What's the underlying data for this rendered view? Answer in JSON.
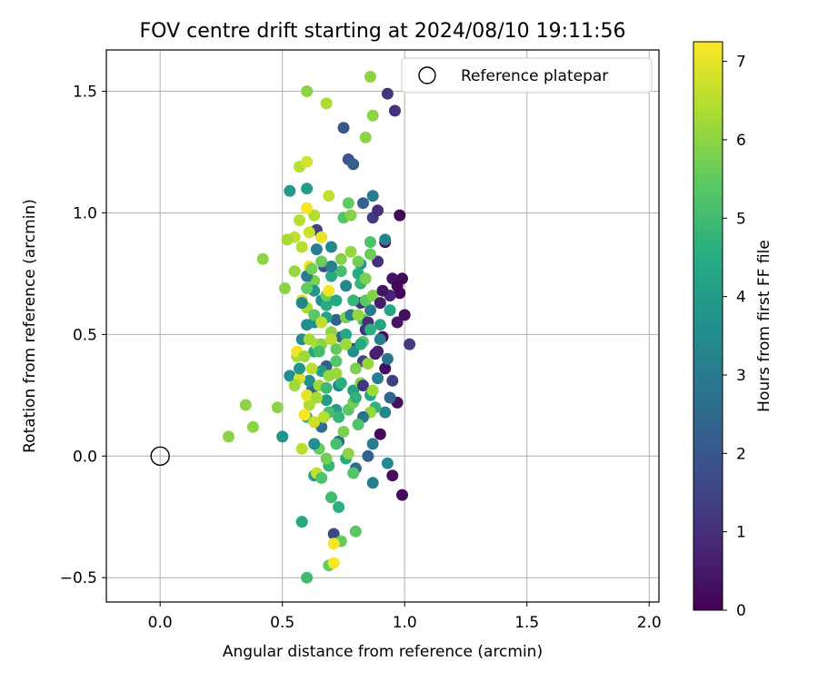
{
  "chart_data": {
    "type": "scatter",
    "title": "FOV centre drift starting at 2024/08/10 19:11:56",
    "xlabel": "Angular distance from reference (arcmin)",
    "ylabel": "Rotation from reference (arcmin)",
    "xlim": [
      -0.22,
      2.04
    ],
    "ylim": [
      -0.6,
      1.67
    ],
    "x_ticks": [
      0.0,
      0.5,
      1.0,
      1.5,
      2.0
    ],
    "x_tick_labels": [
      "0.0",
      "0.5",
      "1.0",
      "1.5",
      "2.0"
    ],
    "y_ticks": [
      -0.5,
      0.0,
      0.5,
      1.0,
      1.5
    ],
    "y_tick_labels": [
      "−0.5",
      "0.0",
      "0.5",
      "1.0",
      "1.5"
    ],
    "grid": true,
    "legend": {
      "placement": "top-right",
      "entries": [
        "Reference platepar"
      ]
    },
    "reference_point": {
      "x": 0.0,
      "y": 0.0,
      "marker": "open-circle",
      "name": "Reference platepar"
    },
    "colorbar": {
      "label": "Hours from first FF file",
      "colormap": "viridis",
      "min": 0,
      "max": 7.25,
      "ticks": [
        0,
        1,
        2,
        3,
        4,
        5,
        6,
        7
      ],
      "tick_labels": [
        "0",
        "1",
        "2",
        "3",
        "4",
        "5",
        "6",
        "7"
      ]
    },
    "points": [
      [
        0.98,
        0.99,
        0.1
      ],
      [
        0.92,
        0.88,
        0.3
      ],
      [
        0.99,
        0.73,
        0.2
      ],
      [
        0.98,
        0.67,
        0.1
      ],
      [
        1.0,
        0.58,
        0.3
      ],
      [
        0.95,
        0.73,
        0.4
      ],
      [
        0.97,
        0.55,
        0.4
      ],
      [
        0.91,
        0.49,
        0.2
      ],
      [
        0.88,
        0.42,
        0.5
      ],
      [
        0.92,
        0.36,
        0.3
      ],
      [
        0.97,
        0.22,
        0.3
      ],
      [
        0.9,
        0.09,
        0.2
      ],
      [
        0.95,
        -0.08,
        0.3
      ],
      [
        0.99,
        -0.16,
        0.2
      ],
      [
        0.97,
        0.7,
        0.1
      ],
      [
        0.96,
        1.42,
        1.0
      ],
      [
        0.93,
        1.49,
        1.2
      ],
      [
        0.87,
        0.98,
        1.3
      ],
      [
        0.89,
        1.01,
        1.0
      ],
      [
        0.94,
        0.66,
        0.8
      ],
      [
        1.02,
        0.46,
        1.3
      ],
      [
        0.89,
        0.8,
        1.0
      ],
      [
        0.82,
        0.63,
        1.2
      ],
      [
        0.84,
        0.52,
        1.1
      ],
      [
        0.79,
        0.44,
        1.4
      ],
      [
        0.83,
        0.39,
        1.5
      ],
      [
        0.71,
        -0.32,
        1.6
      ],
      [
        0.75,
        1.35,
        2.0
      ],
      [
        0.77,
        1.22,
        2.0
      ],
      [
        0.79,
        1.2,
        2.2
      ],
      [
        0.83,
        1.04,
        2.2
      ],
      [
        0.64,
        0.93,
        1.4
      ],
      [
        0.67,
        0.78,
        1.8
      ],
      [
        0.72,
        0.56,
        2.2
      ],
      [
        0.74,
        0.49,
        2.3
      ],
      [
        0.68,
        0.37,
        2.2
      ],
      [
        0.62,
        0.27,
        2.5
      ],
      [
        0.66,
        0.12,
        2.6
      ],
      [
        0.73,
        0.06,
        2.5
      ],
      [
        0.85,
        0.0,
        2.3
      ],
      [
        0.8,
        -0.05,
        2.6
      ],
      [
        0.87,
        1.07,
        3.0
      ],
      [
        0.92,
        0.89,
        3.2
      ],
      [
        0.86,
        0.6,
        3.0
      ],
      [
        0.89,
        0.32,
        3.1
      ],
      [
        0.92,
        0.18,
        3.3
      ],
      [
        0.93,
        -0.03,
        3.4
      ],
      [
        0.87,
        -0.11,
        3.2
      ],
      [
        0.79,
        0.43,
        3.5
      ],
      [
        0.73,
        0.29,
        3.3
      ],
      [
        0.63,
        0.55,
        3.6
      ],
      [
        0.66,
        0.64,
        3.6
      ],
      [
        0.76,
        0.7,
        3.4
      ],
      [
        0.82,
        0.79,
        3.6
      ],
      [
        0.7,
        0.86,
        3.4
      ],
      [
        0.58,
        0.48,
        3.5
      ],
      [
        0.53,
        0.33,
        3.6
      ],
      [
        0.61,
        0.31,
        3.6
      ],
      [
        0.5,
        0.08,
        3.7
      ],
      [
        0.6,
        1.1,
        4.0
      ],
      [
        0.53,
        1.09,
        3.9
      ],
      [
        0.66,
        0.35,
        4.0
      ],
      [
        0.68,
        0.23,
        4.0
      ],
      [
        0.72,
        0.19,
        4.1
      ],
      [
        0.63,
        -0.08,
        4.1
      ],
      [
        0.79,
        0.27,
        4.2
      ],
      [
        0.86,
        0.25,
        4.3
      ],
      [
        0.9,
        0.54,
        4.2
      ],
      [
        0.94,
        0.6,
        4.3
      ],
      [
        0.7,
        0.74,
        4.5
      ],
      [
        0.58,
        -0.27,
        4.4
      ],
      [
        0.73,
        -0.21,
        4.6
      ],
      [
        0.81,
        0.75,
        4.5
      ],
      [
        0.63,
        0.43,
        4.4
      ],
      [
        0.76,
        -0.01,
        4.5
      ],
      [
        0.88,
        0.2,
        4.7
      ],
      [
        0.68,
        0.62,
        4.5
      ],
      [
        0.74,
        0.3,
        4.6
      ],
      [
        0.79,
        0.64,
        4.8
      ],
      [
        0.82,
        0.71,
        4.8
      ],
      [
        0.69,
        -0.04,
        4.8
      ],
      [
        0.6,
        0.16,
        4.8
      ],
      [
        0.7,
        -0.17,
        5.0
      ],
      [
        0.6,
        -0.5,
        5.0
      ],
      [
        0.75,
        0.98,
        5.3
      ],
      [
        0.86,
        0.88,
        5.2
      ],
      [
        0.83,
        0.56,
        5.2
      ],
      [
        0.74,
        0.76,
        5.1
      ],
      [
        0.77,
        0.19,
        5.4
      ],
      [
        0.83,
        0.47,
        5.4
      ],
      [
        0.84,
        0.64,
        5.4
      ],
      [
        0.86,
        0.83,
        5.6
      ],
      [
        0.77,
        1.04,
        5.5
      ],
      [
        0.68,
        0.66,
        5.6
      ],
      [
        0.72,
        0.44,
        5.5
      ],
      [
        0.65,
        0.03,
        5.6
      ],
      [
        0.69,
        -0.45,
        5.6
      ],
      [
        0.8,
        -0.31,
        5.4
      ],
      [
        0.74,
        -0.35,
        5.6
      ],
      [
        0.81,
        0.8,
        5.7
      ],
      [
        0.84,
        0.73,
        5.8
      ],
      [
        0.87,
        0.66,
        5.9
      ],
      [
        0.86,
        1.56,
        6.0
      ],
      [
        0.87,
        1.4,
        6.0
      ],
      [
        0.84,
        1.31,
        6.0
      ],
      [
        0.78,
        0.99,
        5.9
      ],
      [
        0.42,
        0.81,
        6.0
      ],
      [
        0.35,
        0.21,
        6.0
      ],
      [
        0.38,
        0.12,
        6.0
      ],
      [
        0.28,
        0.08,
        6.0
      ],
      [
        0.48,
        0.2,
        6.0
      ],
      [
        0.51,
        0.69,
        6.0
      ],
      [
        0.55,
        0.76,
        6.1
      ],
      [
        0.6,
        1.5,
        6.0
      ],
      [
        0.68,
        1.45,
        6.4
      ],
      [
        0.57,
        1.19,
        6.5
      ],
      [
        0.6,
        1.21,
        6.8
      ],
      [
        0.63,
        0.99,
        6.4
      ],
      [
        0.69,
        1.07,
        6.6
      ],
      [
        0.55,
        0.9,
        6.6
      ],
      [
        0.52,
        0.89,
        6.3
      ],
      [
        0.57,
        0.97,
        6.5
      ],
      [
        0.58,
        0.64,
        6.7
      ],
      [
        0.6,
        0.61,
        6.3
      ],
      [
        0.64,
        0.46,
        6.5
      ],
      [
        0.56,
        0.41,
        6.3
      ],
      [
        0.62,
        0.36,
        6.5
      ],
      [
        0.57,
        0.32,
        6.8
      ],
      [
        0.61,
        0.21,
        6.4
      ],
      [
        0.63,
        0.14,
        6.7
      ],
      [
        0.58,
        0.03,
        6.5
      ],
      [
        0.64,
        -0.07,
        6.6
      ],
      [
        0.6,
        1.02,
        7.2
      ],
      [
        0.66,
        0.9,
        7.0
      ],
      [
        0.61,
        0.78,
        7.1
      ],
      [
        0.69,
        0.68,
        7.1
      ],
      [
        0.56,
        0.43,
        7.1
      ],
      [
        0.6,
        0.25,
        7.0
      ],
      [
        0.59,
        0.17,
        7.2
      ],
      [
        0.71,
        -0.36,
        7.2
      ],
      [
        0.71,
        -0.44,
        7.2
      ],
      [
        0.65,
        0.29,
        6.2
      ],
      [
        0.72,
        0.34,
        6.2
      ],
      [
        0.66,
        0.46,
        6.0
      ],
      [
        0.7,
        0.51,
        6.0
      ],
      [
        0.76,
        0.57,
        5.8
      ],
      [
        0.8,
        0.36,
        5.8
      ],
      [
        0.82,
        0.3,
        5.9
      ],
      [
        0.79,
        0.22,
        5.7
      ],
      [
        0.75,
        0.1,
        5.8
      ],
      [
        0.68,
        -0.01,
        5.7
      ],
      [
        0.63,
        0.72,
        5.8
      ],
      [
        0.74,
        0.81,
        5.9
      ],
      [
        0.78,
        0.84,
        6.1
      ],
      [
        0.85,
        0.38,
        6.1
      ],
      [
        0.86,
        0.18,
        6.1
      ],
      [
        0.77,
        0.01,
        6.0
      ],
      [
        0.91,
        0.68,
        0.4
      ],
      [
        0.9,
        0.63,
        0.6
      ],
      [
        0.85,
        0.55,
        0.9
      ],
      [
        0.89,
        0.43,
        0.7
      ],
      [
        0.83,
        0.29,
        1.2
      ],
      [
        0.95,
        0.31,
        1.4
      ],
      [
        0.94,
        0.24,
        2.4
      ],
      [
        0.93,
        0.4,
        2.8
      ],
      [
        0.9,
        0.48,
        3.0
      ],
      [
        0.83,
        0.16,
        2.8
      ],
      [
        0.87,
        0.05,
        3.0
      ],
      [
        0.78,
        0.58,
        3.2
      ],
      [
        0.7,
        0.78,
        3.2
      ],
      [
        0.64,
        0.85,
        3.1
      ],
      [
        0.6,
        0.74,
        3.0
      ],
      [
        0.58,
        0.63,
        3.3
      ],
      [
        0.6,
        0.54,
        3.5
      ],
      [
        0.63,
        0.05,
        3.6
      ],
      [
        0.57,
        0.36,
        3.8
      ],
      [
        0.63,
        0.68,
        3.8
      ],
      [
        0.68,
        0.57,
        4.2
      ],
      [
        0.72,
        0.64,
        4.3
      ],
      [
        0.76,
        0.5,
        4.3
      ],
      [
        0.82,
        0.46,
        4.4
      ],
      [
        0.86,
        0.52,
        4.6
      ],
      [
        0.8,
        0.24,
        4.7
      ],
      [
        0.73,
        0.16,
        4.8
      ],
      [
        0.68,
        0.28,
        4.9
      ],
      [
        0.65,
        0.43,
        5.0
      ],
      [
        0.69,
        0.18,
        5.1
      ],
      [
        0.72,
        0.05,
        5.1
      ],
      [
        0.81,
        0.13,
        5.2
      ],
      [
        0.66,
        -0.09,
        5.2
      ],
      [
        0.79,
        -0.07,
        5.3
      ],
      [
        0.72,
        0.39,
        5.3
      ],
      [
        0.63,
        0.58,
        5.4
      ],
      [
        0.6,
        0.69,
        5.5
      ],
      [
        0.66,
        0.8,
        5.6
      ],
      [
        0.62,
        0.77,
        5.7
      ],
      [
        0.59,
        0.41,
        6.2
      ],
      [
        0.55,
        0.29,
        6.2
      ],
      [
        0.61,
        0.48,
        6.3
      ],
      [
        0.64,
        0.24,
        6.3
      ],
      [
        0.69,
        0.33,
        6.1
      ],
      [
        0.81,
        0.58,
        6.1
      ],
      [
        0.87,
        0.27,
        6.2
      ],
      [
        0.76,
        0.46,
        6.2
      ],
      [
        0.58,
        0.86,
        6.5
      ],
      [
        0.61,
        0.92,
        6.7
      ],
      [
        0.66,
        0.55,
        6.6
      ],
      [
        0.7,
        0.48,
        6.5
      ],
      [
        0.67,
        0.16,
        6.5
      ]
    ]
  }
}
